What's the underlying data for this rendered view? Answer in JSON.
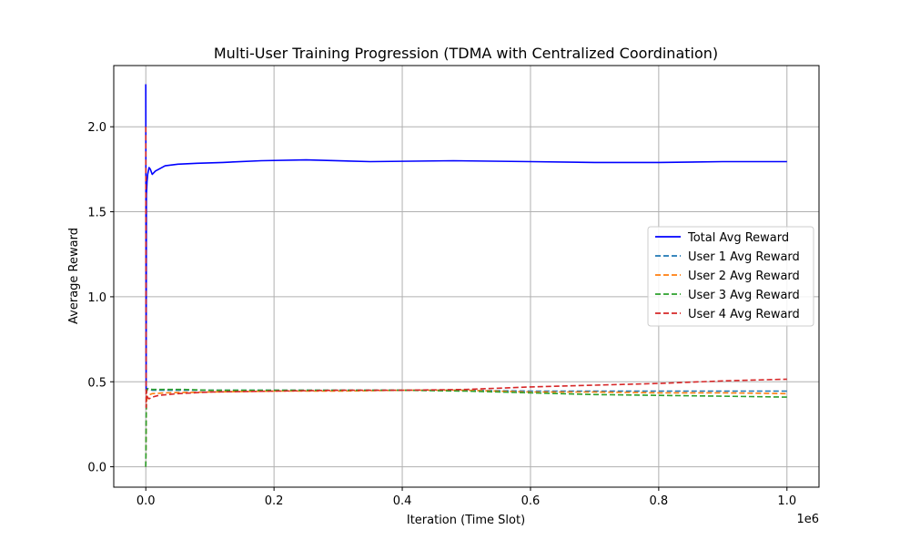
{
  "chart_data": {
    "type": "line",
    "title": "Multi-User Training Progression (TDMA with Centralized Coordination)",
    "xlabel": "Iteration (Time Slot)",
    "ylabel": "Average Reward",
    "x_offset_text": "1e6",
    "xlim": [
      -50000,
      1050000
    ],
    "ylim": [
      -0.12,
      2.36
    ],
    "x_ticks": [
      0,
      200000,
      400000,
      600000,
      800000,
      1000000
    ],
    "x_tick_labels": [
      "0.0",
      "0.2",
      "0.4",
      "0.6",
      "0.8",
      "1.0"
    ],
    "y_ticks": [
      0,
      0.5,
      1.0,
      1.5,
      2.0
    ],
    "y_tick_labels": [
      "0.0",
      "0.5",
      "1.0",
      "1.5",
      "2.0"
    ],
    "grid": true,
    "legend_position": "center-right",
    "series": [
      {
        "name": "Total Avg Reward",
        "color": "#0000ff",
        "style": "solid",
        "x": [
          0,
          500,
          1000,
          2000,
          3000,
          5000,
          7000,
          10000,
          15000,
          20000,
          30000,
          50000,
          80000,
          120000,
          180000,
          250000,
          350000,
          480000,
          600000,
          700000,
          800000,
          900000,
          1000000
        ],
        "y": [
          2.25,
          0.45,
          1.6,
          1.68,
          1.72,
          1.76,
          1.75,
          1.72,
          1.74,
          1.75,
          1.77,
          1.78,
          1.785,
          1.79,
          1.8,
          1.805,
          1.795,
          1.8,
          1.795,
          1.79,
          1.79,
          1.795,
          1.795
        ]
      },
      {
        "name": "User 1 Avg Reward",
        "color": "#1f77b4",
        "style": "dashed",
        "x": [
          0,
          1000,
          3000,
          10000,
          30000,
          100000,
          200000,
          300000,
          400000,
          500000,
          600000,
          700000,
          800000,
          900000,
          1000000
        ],
        "y": [
          0.0,
          0.44,
          0.46,
          0.45,
          0.45,
          0.45,
          0.45,
          0.45,
          0.45,
          0.45,
          0.445,
          0.445,
          0.445,
          0.445,
          0.445
        ]
      },
      {
        "name": "User 2 Avg Reward",
        "color": "#ff7f0e",
        "style": "dashed",
        "x": [
          0,
          1000,
          3000,
          10000,
          30000,
          100000,
          200000,
          300000,
          400000,
          500000,
          600000,
          700000,
          800000,
          900000,
          1000000
        ],
        "y": [
          0.0,
          0.38,
          0.42,
          0.43,
          0.435,
          0.44,
          0.445,
          0.445,
          0.45,
          0.45,
          0.44,
          0.44,
          0.435,
          0.435,
          0.43
        ]
      },
      {
        "name": "User 3 Avg Reward",
        "color": "#2ca02c",
        "style": "dashed",
        "x": [
          0,
          1000,
          3000,
          10000,
          30000,
          60000,
          100000,
          200000,
          300000,
          400000,
          500000,
          600000,
          700000,
          800000,
          900000,
          1000000
        ],
        "y": [
          0.0,
          0.44,
          0.46,
          0.455,
          0.455,
          0.455,
          0.45,
          0.45,
          0.45,
          0.45,
          0.445,
          0.435,
          0.425,
          0.42,
          0.415,
          0.41
        ]
      },
      {
        "name": "User 4 Avg Reward",
        "color": "#d62728",
        "style": "dashed",
        "x": [
          0,
          500,
          1000,
          2000,
          5000,
          10000,
          20000,
          50000,
          100000,
          200000,
          300000,
          400000,
          500000,
          600000,
          700000,
          800000,
          900000,
          1000000
        ],
        "y": [
          2.0,
          0.35,
          0.45,
          0.41,
          0.4,
          0.41,
          0.42,
          0.43,
          0.44,
          0.445,
          0.45,
          0.45,
          0.455,
          0.47,
          0.48,
          0.49,
          0.505,
          0.515
        ]
      }
    ]
  }
}
